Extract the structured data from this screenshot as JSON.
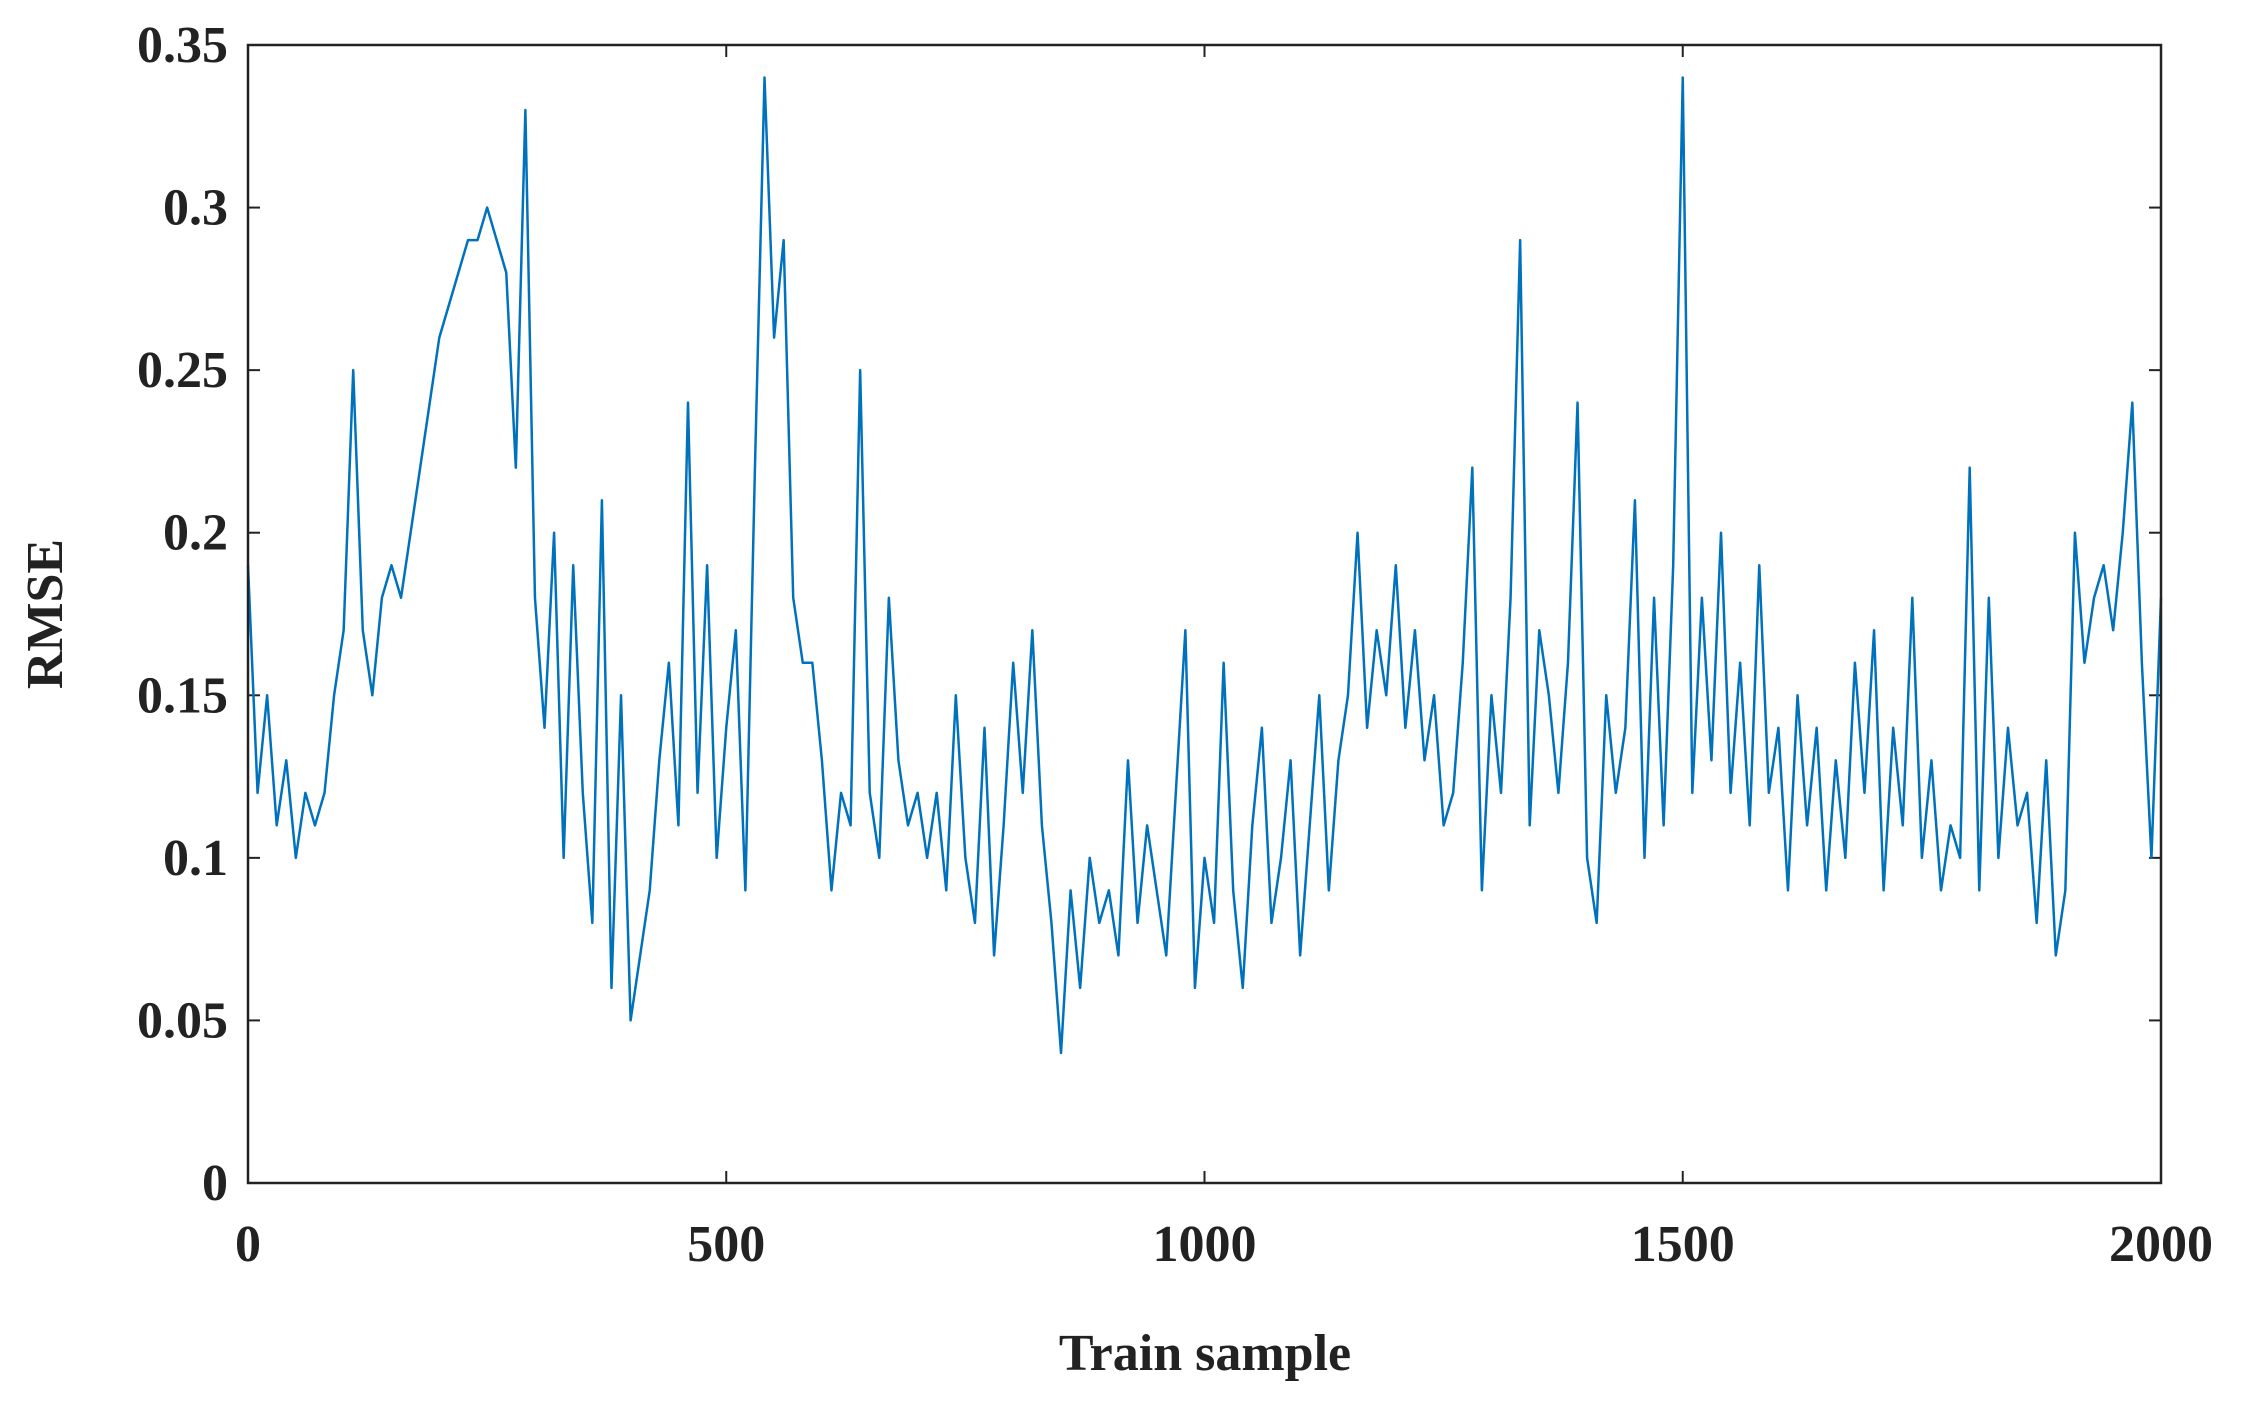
{
  "chart_data": {
    "type": "line",
    "xlabel": "Train sample",
    "ylabel": "RMSE",
    "xlim": [
      0,
      2000
    ],
    "xticks": [
      0,
      500,
      1000,
      1500,
      2000
    ],
    "ylim": [
      0,
      0.35
    ],
    "yticks": [
      0,
      0.05,
      0.1,
      0.15,
      0.2,
      0.25,
      0.3,
      0.35
    ],
    "grid": false,
    "color": "#0072bd",
    "x": [
      0,
      10,
      20,
      30,
      40,
      50,
      60,
      70,
      80,
      90,
      100,
      110,
      120,
      130,
      140,
      150,
      160,
      170,
      180,
      190,
      200,
      210,
      220,
      230,
      240,
      250,
      260,
      270,
      280,
      290,
      300,
      310,
      320,
      330,
      340,
      350,
      360,
      370,
      380,
      390,
      400,
      410,
      420,
      430,
      440,
      450,
      460,
      470,
      480,
      490,
      500,
      510,
      520,
      530,
      540,
      550,
      560,
      570,
      580,
      590,
      600,
      610,
      620,
      630,
      640,
      650,
      660,
      670,
      680,
      690,
      700,
      710,
      720,
      730,
      740,
      750,
      760,
      770,
      780,
      790,
      800,
      810,
      820,
      830,
      840,
      850,
      860,
      870,
      880,
      890,
      900,
      910,
      920,
      930,
      940,
      950,
      960,
      970,
      980,
      990,
      1000,
      1010,
      1020,
      1030,
      1040,
      1050,
      1060,
      1070,
      1080,
      1090,
      1100,
      1110,
      1120,
      1130,
      1140,
      1150,
      1160,
      1170,
      1180,
      1190,
      1200,
      1210,
      1220,
      1230,
      1240,
      1250,
      1260,
      1270,
      1280,
      1290,
      1300,
      1310,
      1320,
      1330,
      1340,
      1350,
      1360,
      1370,
      1380,
      1390,
      1400,
      1410,
      1420,
      1430,
      1440,
      1450,
      1460,
      1470,
      1480,
      1490,
      1500,
      1510,
      1520,
      1530,
      1540,
      1550,
      1560,
      1570,
      1580,
      1590,
      1600,
      1610,
      1620,
      1630,
      1640,
      1650,
      1660,
      1670,
      1680,
      1690,
      1700,
      1710,
      1720,
      1730,
      1740,
      1750,
      1760,
      1770,
      1780,
      1790,
      1800,
      1810,
      1820,
      1830,
      1840,
      1850,
      1860,
      1870,
      1880,
      1890,
      1900,
      1910,
      1920,
      1930,
      1940,
      1950,
      1960,
      1970,
      1980,
      1990,
      2000
    ],
    "values": [
      0.19,
      0.12,
      0.15,
      0.11,
      0.13,
      0.1,
      0.12,
      0.11,
      0.12,
      0.15,
      0.17,
      0.25,
      0.17,
      0.15,
      0.18,
      0.19,
      0.18,
      0.2,
      0.22,
      0.24,
      0.26,
      0.27,
      0.28,
      0.29,
      0.29,
      0.3,
      0.29,
      0.28,
      0.22,
      0.33,
      0.18,
      0.14,
      0.2,
      0.1,
      0.19,
      0.12,
      0.08,
      0.21,
      0.06,
      0.15,
      0.05,
      0.07,
      0.09,
      0.13,
      0.16,
      0.11,
      0.24,
      0.12,
      0.19,
      0.1,
      0.14,
      0.17,
      0.09,
      0.22,
      0.34,
      0.26,
      0.29,
      0.18,
      0.16,
      0.16,
      0.13,
      0.09,
      0.12,
      0.11,
      0.25,
      0.12,
      0.1,
      0.18,
      0.13,
      0.11,
      0.12,
      0.1,
      0.12,
      0.09,
      0.15,
      0.1,
      0.08,
      0.14,
      0.07,
      0.11,
      0.16,
      0.12,
      0.17,
      0.11,
      0.08,
      0.04,
      0.09,
      0.06,
      0.1,
      0.08,
      0.09,
      0.07,
      0.13,
      0.08,
      0.11,
      0.09,
      0.07,
      0.12,
      0.17,
      0.06,
      0.1,
      0.08,
      0.16,
      0.09,
      0.06,
      0.11,
      0.14,
      0.08,
      0.1,
      0.13,
      0.07,
      0.11,
      0.15,
      0.09,
      0.13,
      0.15,
      0.2,
      0.14,
      0.17,
      0.15,
      0.19,
      0.14,
      0.17,
      0.13,
      0.15,
      0.11,
      0.12,
      0.16,
      0.22,
      0.09,
      0.15,
      0.12,
      0.18,
      0.29,
      0.11,
      0.17,
      0.15,
      0.12,
      0.16,
      0.24,
      0.1,
      0.08,
      0.15,
      0.12,
      0.14,
      0.21,
      0.1,
      0.18,
      0.11,
      0.19,
      0.34,
      0.12,
      0.18,
      0.13,
      0.2,
      0.12,
      0.16,
      0.11,
      0.19,
      0.12,
      0.14,
      0.09,
      0.15,
      0.11,
      0.14,
      0.09,
      0.13,
      0.1,
      0.16,
      0.12,
      0.17,
      0.09,
      0.14,
      0.11,
      0.18,
      0.1,
      0.13,
      0.09,
      0.11,
      0.1,
      0.22,
      0.09,
      0.18,
      0.1,
      0.14,
      0.11,
      0.12,
      0.08,
      0.13,
      0.07,
      0.09,
      0.2,
      0.16,
      0.18,
      0.19,
      0.17,
      0.2,
      0.24,
      0.16,
      0.1,
      0.18
    ]
  }
}
